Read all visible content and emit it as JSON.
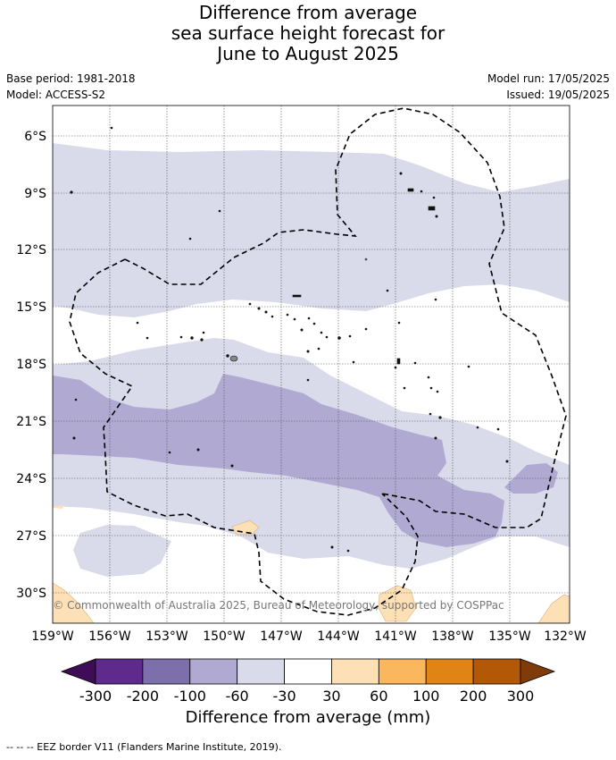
{
  "title_lines": [
    "Difference from average",
    "sea surface height forecast for",
    "June to August 2025"
  ],
  "meta_left": {
    "base_period": "Base period: 1981-2018",
    "model": "Model: ACCESS-S2"
  },
  "meta_right": {
    "model_run": "Model run: 17/05/2025",
    "issued": "Issued: 19/05/2025"
  },
  "map": {
    "lat_labels": [
      "6°S",
      "9°S",
      "12°S",
      "15°S",
      "18°S",
      "21°S",
      "24°S",
      "27°S",
      "30°S"
    ],
    "lon_labels": [
      "159°W",
      "156°W",
      "153°W",
      "150°W",
      "147°W",
      "144°W",
      "141°W",
      "138°W",
      "135°W",
      "132°W"
    ],
    "copyright": "© Commonwealth of Australia 2025, Bureau of Meteorology, supported by COSPPac"
  },
  "colorbar": {
    "title": "Difference from average (mm)",
    "ticks": [
      "-300",
      "-200",
      "-100",
      "-60",
      "-30",
      "30",
      "60",
      "100",
      "200",
      "300"
    ],
    "colors": [
      "#3f0d57",
      "#5e2a8c",
      "#7d6eac",
      "#b0aad2",
      "#d9daea",
      "#ffffff",
      "#fee0b6",
      "#fbb75e",
      "#e08416",
      "#b35806",
      "#7f3b08"
    ]
  },
  "footer": "--  --  -- EEZ border V11 (Flanders Marine Institute, 2019)."
}
